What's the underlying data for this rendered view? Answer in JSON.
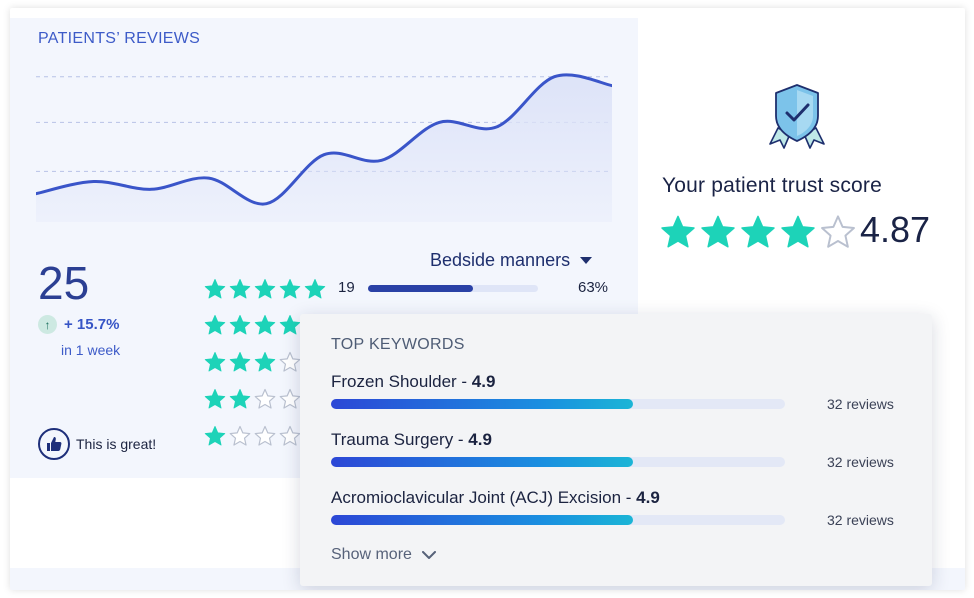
{
  "reviews": {
    "section_title": "PATIENTS’ REVIEWS",
    "total_count": "25",
    "growth": "+ 15.7%",
    "growth_period": "in 1 week",
    "feedback_label": "This is great!",
    "category_dropdown": "Bedside manners",
    "breakdown": [
      {
        "stars": 5,
        "count": "19",
        "fill_fraction": 0.63,
        "percent": "63%"
      },
      {
        "stars": 4
      },
      {
        "stars": 3
      },
      {
        "stars": 2
      },
      {
        "stars": 1
      }
    ]
  },
  "chart_data": {
    "type": "area",
    "x": [
      0,
      1,
      2,
      3,
      4,
      5,
      6,
      7,
      8,
      9,
      10
    ],
    "values": [
      2.0,
      3.1,
      2.4,
      3.4,
      1.1,
      5.5,
      5.0,
      8.4,
      8.0,
      12.5,
      11.7
    ],
    "ylim": [
      0,
      14
    ],
    "gridlines": [
      4.0,
      8.4,
      12.5
    ],
    "grid": "dashed-horizontal",
    "line_color": "#3a55c9",
    "fill_color": "#dde3f8"
  },
  "trust": {
    "title": "Your patient trust score",
    "score": "4.87",
    "filled_stars": 4,
    "total_stars": 5
  },
  "keywords": {
    "title": "TOP KEYWORDS",
    "items": [
      {
        "name": "Frozen Shoulder",
        "separator": " - ",
        "score": "4.9",
        "fill_fraction": 0.665,
        "reviews": "32 reviews"
      },
      {
        "name": "Trauma Surgery",
        "separator": " - ",
        "score": "4.9",
        "fill_fraction": 0.665,
        "reviews": "32 reviews"
      },
      {
        "name": "Acromioclavicular Joint (ACJ) Excision",
        "separator": " - ",
        "score": "4.9",
        "fill_fraction": 0.665,
        "reviews": "32 reviews"
      }
    ],
    "show_more": "Show more"
  },
  "colors": {
    "star_filled": "#1dd3b8",
    "star_empty": "#ffffff",
    "accent": "#3a55c9",
    "panel_bg": "#f3f6fd"
  },
  "icons": {
    "growth": "arrow-up-icon",
    "feedback": "thumbs-up-icon",
    "trust": "shield-check-icon",
    "dropdown": "caret-down-icon",
    "show_more": "chevron-down-icon"
  }
}
